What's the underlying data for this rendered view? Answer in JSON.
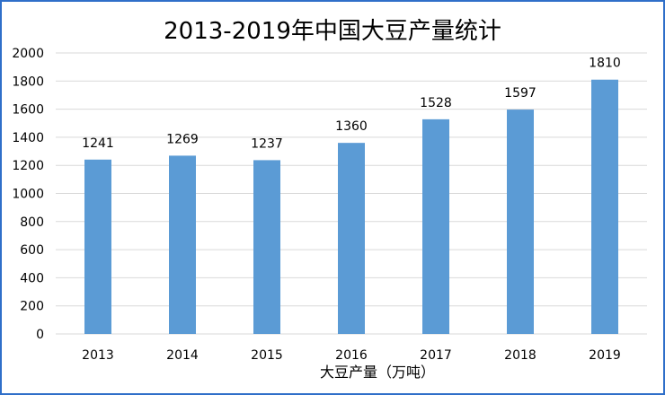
{
  "chart_data": {
    "type": "bar",
    "title": "2013-2019年中国大豆产量统计",
    "categories": [
      "2013",
      "2014",
      "2015",
      "2016",
      "2017",
      "2018",
      "2019"
    ],
    "values": [
      1241,
      1269,
      1237,
      1360,
      1528,
      1597,
      1810
    ],
    "xlabel": "大豆产量（万吨）",
    "ylabel": "",
    "ylim": [
      0,
      2000
    ],
    "yticks": [
      0,
      200,
      400,
      600,
      800,
      1000,
      1200,
      1400,
      1600,
      1800,
      2000
    ],
    "grid": true,
    "legend": "none",
    "bar_color": "#5b9bd5",
    "grid_color": "#d9d9d9",
    "border_color": "#2f6fc9"
  }
}
